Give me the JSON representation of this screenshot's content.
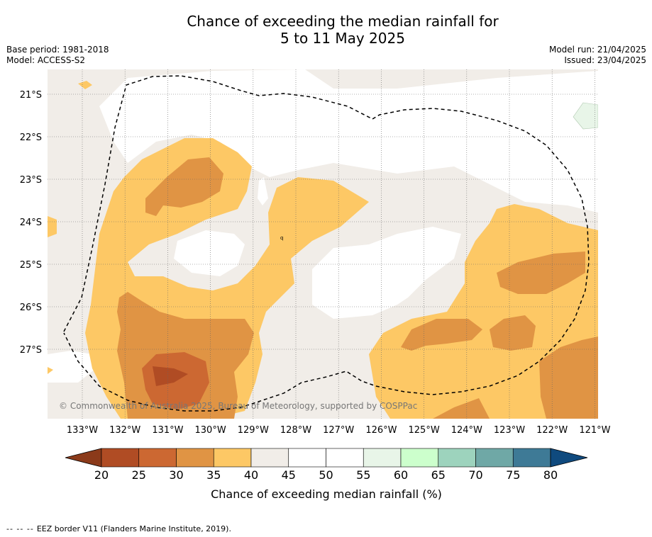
{
  "title_line1": "Chance of exceeding the median rainfall for",
  "title_line2": "5 to 11 May 2025",
  "base_period": "Base period: 1981-2018",
  "model": "Model: ACCESS-S2",
  "model_run": "Model run: 21/04/2025",
  "issued": "Issued: 23/04/2025",
  "copyright": "© Commonwealth of Australia 2025, Bureau of Meteorology, supported by COSPPac",
  "lat_labels": [
    "21°S",
    "22°S",
    "23°S",
    "24°S",
    "25°S",
    "26°S",
    "27°S"
  ],
  "lon_labels": [
    "133°W",
    "132°W",
    "131°W",
    "130°W",
    "129°W",
    "128°W",
    "127°W",
    "126°W",
    "125°W",
    "124°W",
    "123°W",
    "122°W",
    "121°W"
  ],
  "colorbar": {
    "ticks": [
      "20",
      "25",
      "30",
      "35",
      "40",
      "45",
      "50",
      "55",
      "60",
      "65",
      "70",
      "75",
      "80"
    ],
    "colors": [
      "#8b3a1a",
      "#b04c24",
      "#cc6832",
      "#e09444",
      "#fdc865",
      "#f1ede8",
      "#ffffff",
      "#ffffff",
      "#e8f5e8",
      "#ccffcc",
      "#9dd3bd",
      "#6fa8a6",
      "#3e7a96",
      "#0f4a7e"
    ],
    "label": "Chance of exceeding median rainfall (%)"
  },
  "legend_note": "EEZ border V11 (Flanders Marine Institute, 2019).",
  "legend_dash": "-- -- --"
}
